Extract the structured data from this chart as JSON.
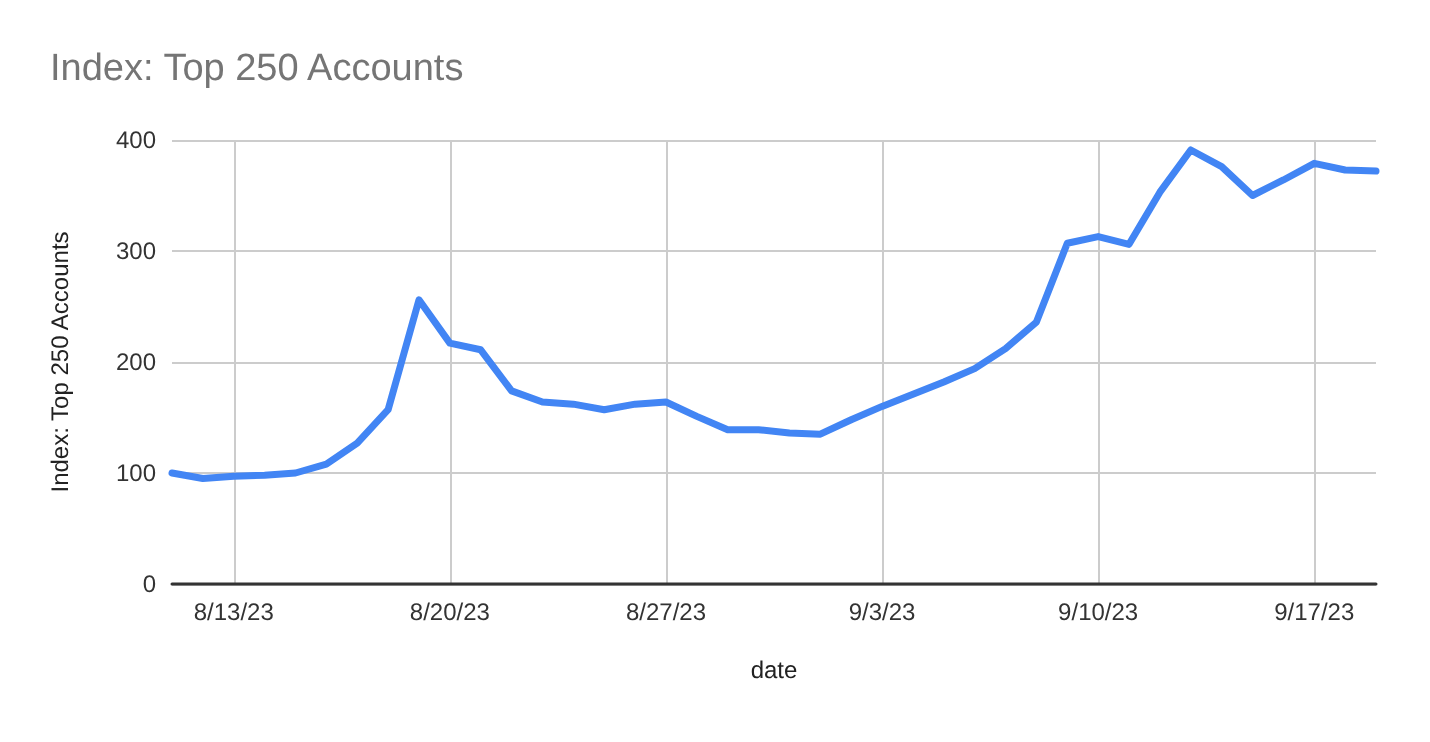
{
  "chart_data": {
    "type": "line",
    "title": "Index: Top 250 Accounts",
    "xlabel": "date",
    "ylabel": "Index: Top 250 Accounts",
    "x": [
      "--08-11",
      "--08-12",
      "--08-13",
      "--08-14",
      "--08-15",
      "--08-16",
      "--08-17",
      "--08-18",
      "--08-19",
      "--08-20",
      "--08-21",
      "--08-22",
      "--08-23",
      "--08-24",
      "--08-25",
      "--08-26",
      "--08-27",
      "--08-28",
      "--08-29",
      "--08-30",
      "--08-31",
      "--09-01",
      "--09-02",
      "--09-03",
      "--09-04",
      "--09-05",
      "--09-06",
      "--09-07",
      "--09-08",
      "--09-09",
      "--09-10",
      "--09-11",
      "--09-12",
      "--09-13",
      "--09-14",
      "--09-15",
      "--09-16",
      "--09-17",
      "--09-18",
      "--09-19"
    ],
    "series": [
      {
        "color": "#4285f4",
        "values": [
          100,
          95,
          97,
          98,
          100,
          108,
          127,
          157,
          256,
          217,
          211,
          174,
          164,
          162,
          157,
          162,
          164,
          151,
          139,
          139,
          136,
          135,
          148,
          160,
          171,
          182,
          194,
          212,
          236,
          307,
          313,
          306,
          353,
          391,
          376,
          350,
          364,
          379,
          373,
          372
        ]
      }
    ],
    "xlim": [
      "--08-11",
      "--09-19"
    ],
    "xticks": [
      {
        "value": "--08-13",
        "label": "8/13/23"
      },
      {
        "value": "--08-20",
        "label": "8/20/23"
      },
      {
        "value": "--08-27",
        "label": "8/27/23"
      },
      {
        "value": "--09-03",
        "label": "9/3/23"
      },
      {
        "value": "--09-10",
        "label": "9/10/23"
      },
      {
        "value": "--09-17",
        "label": "9/17/23"
      }
    ],
    "ylim": [
      0,
      400
    ],
    "yticks": [
      0,
      100,
      200,
      300,
      400
    ],
    "grid": true,
    "marker": "none",
    "line_style": "solid"
  }
}
